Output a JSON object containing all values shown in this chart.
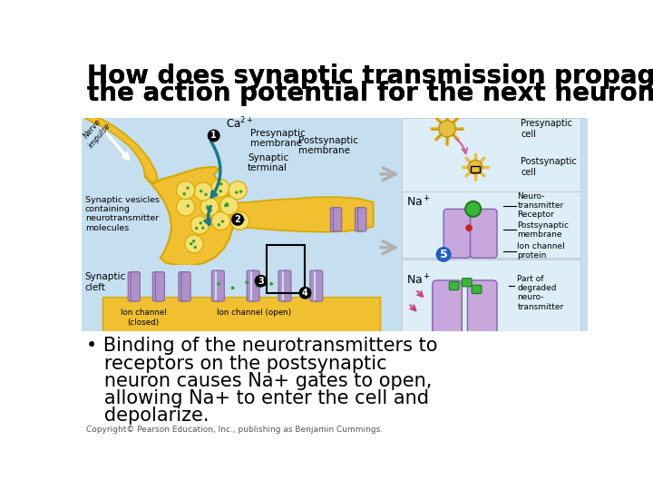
{
  "title_line1": "How does synaptic transmission propagate",
  "title_line2": "the action potential for the next neuron?",
  "title_color": "#000000",
  "title_fontsize": 20,
  "bg_color": "#ffffff",
  "bullet_lines": [
    "• Binding of the neurotransmitters to",
    "   receptors on the postsynaptic",
    "   neuron causes Na+ gates to open,",
    "   allowing Na+ to enter the cell and",
    "   depolarize."
  ],
  "bullet_fontsize": 15,
  "copyright_text": "Copyright© Pearson Education, Inc., publishing as Benjamin Cummings.",
  "copyright_fontsize": 6.5,
  "slide_bg": "#ffffff",
  "image_bg": "#c5dff0",
  "synapse_yellow": "#f0c030",
  "synapse_yellow_dark": "#d4a800",
  "vesicle_color": "#f5e070",
  "purple_channel": "#b090c8",
  "purple_channel_edge": "#7a60a0",
  "green_dot": "#30a030",
  "teal_arrow": "#1a7a8a",
  "right_panel_bg": "#ddeef8",
  "neuron_gold": "#e8c040"
}
